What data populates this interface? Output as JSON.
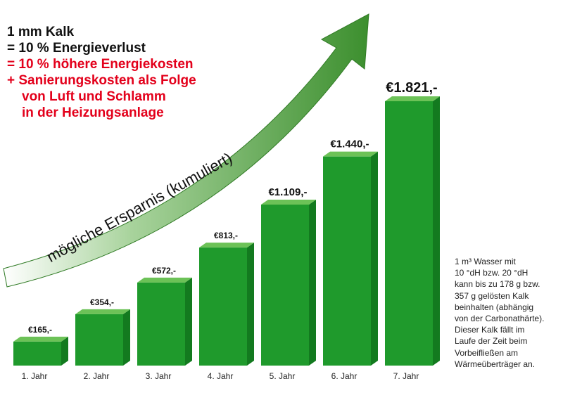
{
  "headline": {
    "line1": "1 mm Kalk",
    "line2": "= 10 % Energieverlust",
    "line3": "= 10 % höhere Energiekosten",
    "line4": "+ Sanierungskosten als Folge",
    "line5": "von Luft und Schlamm",
    "line6": "in der Heizungsanlage"
  },
  "arrow": {
    "label": "mögliche Ersparnis (kumuliert)",
    "color": "#3c8f2e"
  },
  "side_note": {
    "lines": [
      "1 m³ Wasser mit",
      "10 °dH bzw. 20 °dH",
      "kann bis zu 178 g bzw.",
      "357 g gelösten Kalk",
      "beinhalten (abhängig",
      "von der Carbonathärte).",
      "Dieser Kalk fällt im",
      "Laufe der Zeit beim",
      "Vorbeifließen am",
      "Wärmeüberträger an."
    ]
  },
  "colors": {
    "bar_front": "#1f9a2c",
    "bar_side": "#137a1f",
    "bar_top": "#6cc257",
    "black_text": "#111111",
    "red_text": "#e3001b"
  },
  "chart_data": {
    "type": "bar",
    "categories": [
      "1. Jahr",
      "2. Jahr",
      "3. Jahr",
      "4. Jahr",
      "5. Jahr",
      "6. Jahr",
      "7. Jahr"
    ],
    "values": [
      165,
      354,
      572,
      813,
      1109,
      1440,
      1821
    ],
    "labels": [
      "€165,-",
      "€354,-",
      "€572,-",
      "€813,-",
      "€1.109,-",
      "€1.440,-",
      "€1.821,-"
    ],
    "ylim": [
      0,
      1821
    ],
    "grid": false,
    "legend": "none"
  }
}
